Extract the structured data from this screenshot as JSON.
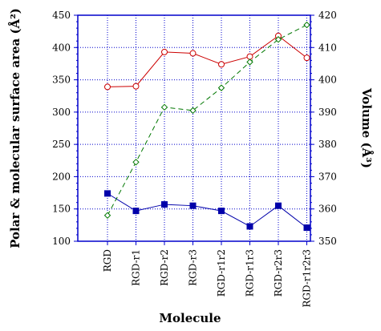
{
  "chart_data": {
    "type": "line",
    "xlabel": "Molecule",
    "ylabel_left": "Polar & molecular surface area (Å²)",
    "ylabel_right": "Volume (Å³)",
    "categories": [
      "RGD",
      "RGD-r1",
      "RGD-r2",
      "RGD-r3",
      "RGD-r1r2",
      "RGD-r1r3",
      "RGD-r2r3",
      "RGD-r1r2r3"
    ],
    "ylim_left": [
      100,
      450
    ],
    "yticks_left": [
      100,
      150,
      200,
      250,
      300,
      350,
      400,
      450
    ],
    "ylim_right": [
      350,
      420
    ],
    "yticks_right": [
      350,
      360,
      370,
      380,
      390,
      400,
      410,
      420
    ],
    "grid": true,
    "series": [
      {
        "axis": "left",
        "color": "#cc0000",
        "marker": "open-circle",
        "line_style": "solid",
        "values": [
          339,
          340,
          393,
          391,
          374,
          386,
          418,
          384
        ]
      },
      {
        "axis": "left",
        "color": "#0000aa",
        "marker": "filled-square",
        "line_style": "solid",
        "values": [
          174,
          147,
          157,
          155,
          147,
          123,
          155,
          121
        ]
      },
      {
        "axis": "right",
        "color": "#007700",
        "marker": "open-diamond",
        "line_style": "dashed",
        "values": [
          358,
          374.5,
          391.5,
          390.5,
          397.5,
          405.5,
          412.5,
          417
        ]
      }
    ]
  }
}
